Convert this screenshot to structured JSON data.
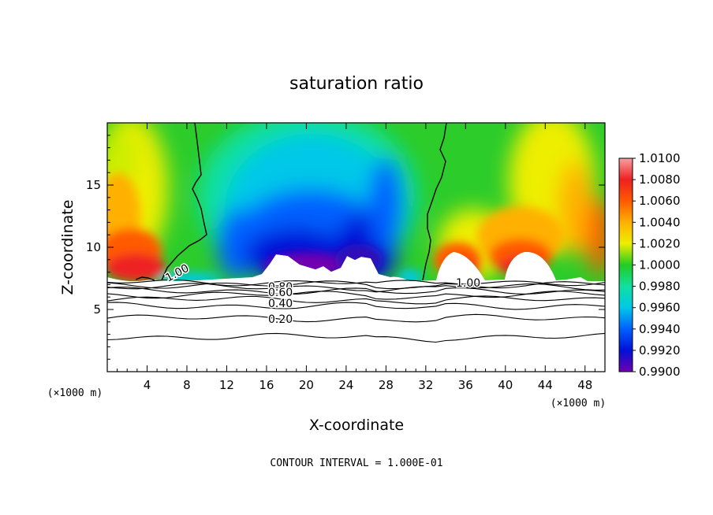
{
  "chart_data": {
    "type": "heatmap",
    "title": "saturation ratio",
    "xlabel": "X-coordinate",
    "ylabel": "Z-coordinate",
    "x_unit": "(×1000 m)",
    "footer": "CONTOUR INTERVAL = 1.000E-01",
    "xlim": [
      0,
      50
    ],
    "ylim": [
      0,
      20
    ],
    "x_ticks": [
      "4",
      "8",
      "12",
      "16",
      "20",
      "24",
      "28",
      "32",
      "36",
      "40",
      "44",
      "48"
    ],
    "y_ticks": [
      "5",
      "10",
      "15"
    ],
    "colorbar": {
      "levels": [
        "1.0100",
        "1.0080",
        "1.0060",
        "1.0040",
        "1.0020",
        "1.0000",
        "0.9980",
        "0.9960",
        "0.9940",
        "0.9920",
        "0.9900"
      ],
      "colors": [
        "#f7a0a0",
        "#ee2020",
        "#ff5a00",
        "#ffb000",
        "#eeee00",
        "#22cc22",
        "#10e0a0",
        "#00c8e8",
        "#0060ff",
        "#0010d8",
        "#7000b0"
      ]
    },
    "contour_labels": [
      "1.00",
      "1.00",
      "0.80",
      "0.60",
      "0.40",
      "0.20"
    ],
    "contour_lines": [
      {
        "level": 0.2,
        "z": 4.3
      },
      {
        "level": 0.4,
        "z": 5.3
      },
      {
        "level": 0.6,
        "z": 6.2
      },
      {
        "level": 0.8,
        "z": 6.8
      },
      {
        "level": 1.0,
        "z": 7.2
      }
    ]
  }
}
